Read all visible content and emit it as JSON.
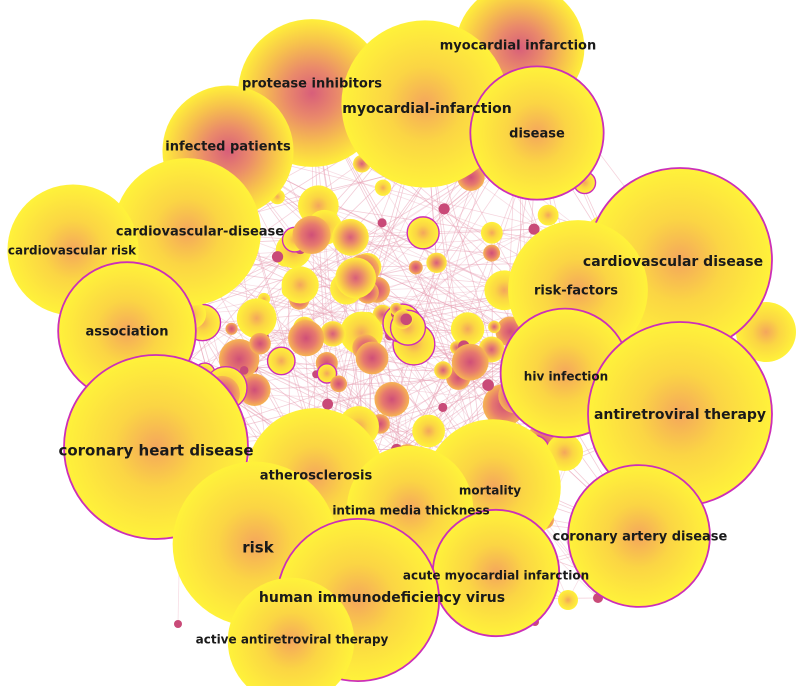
{
  "network": {
    "colors": {
      "node_outer": "#ffef3a",
      "node_mid": "#f9c84a",
      "node_inner": "#e37a72",
      "node_core": "#d35a78",
      "ring": "#cc2fb8",
      "edge": "#e8a0b4",
      "dot": "#c94a78"
    },
    "keywords": [
      {
        "id": "myocardial-infarction-2",
        "label": "myocardial infarction",
        "freq": 38
      },
      {
        "id": "protease-inhibitors",
        "label": "protease inhibitors",
        "freq": 56
      },
      {
        "id": "myocardial-infarction",
        "label": "myocardial-infarction",
        "freq": 78
      },
      {
        "id": "disease",
        "label": "disease",
        "freq": 42
      },
      {
        "id": "infected-patients",
        "label": "infected patients",
        "freq": 40
      },
      {
        "id": "cardiovascular-disease-hyph",
        "label": "cardiovascular-disease",
        "freq": 56
      },
      {
        "id": "cardiovascular-risk",
        "label": "cardiovascular risk",
        "freq": 40
      },
      {
        "id": "cardiovascular-disease",
        "label": "cardiovascular disease",
        "freq": 100
      },
      {
        "id": "risk-factors",
        "label": "risk-factors",
        "freq": 48
      },
      {
        "id": "association",
        "label": "association",
        "freq": 46
      },
      {
        "id": "hiv-infection",
        "label": "hiv infection",
        "freq": 38
      },
      {
        "id": "antiretroviral-therapy",
        "label": "antiretroviral therapy",
        "freq": 100
      },
      {
        "id": "coronary-heart-disease",
        "label": "coronary heart disease",
        "freq": 100
      },
      {
        "id": "atherosclerosis",
        "label": "atherosclerosis",
        "freq": 46
      },
      {
        "id": "mortality",
        "label": "mortality",
        "freq": 44
      },
      {
        "id": "intima-media-thickness",
        "label": "intima media thickness",
        "freq": 36
      },
      {
        "id": "risk",
        "label": "risk",
        "freq": 75
      },
      {
        "id": "coronary-artery-disease",
        "label": "coronary artery disease",
        "freq": 50
      },
      {
        "id": "acute-myocardial-infarction",
        "label": "acute myocardial infarction",
        "freq": 36
      },
      {
        "id": "human-immunodeficiency-virus",
        "label": "human immunodeficiency virus",
        "freq": 72
      },
      {
        "id": "active-antiretroviral-therapy",
        "label": "active antiretroviral therapy",
        "freq": 36
      }
    ]
  }
}
